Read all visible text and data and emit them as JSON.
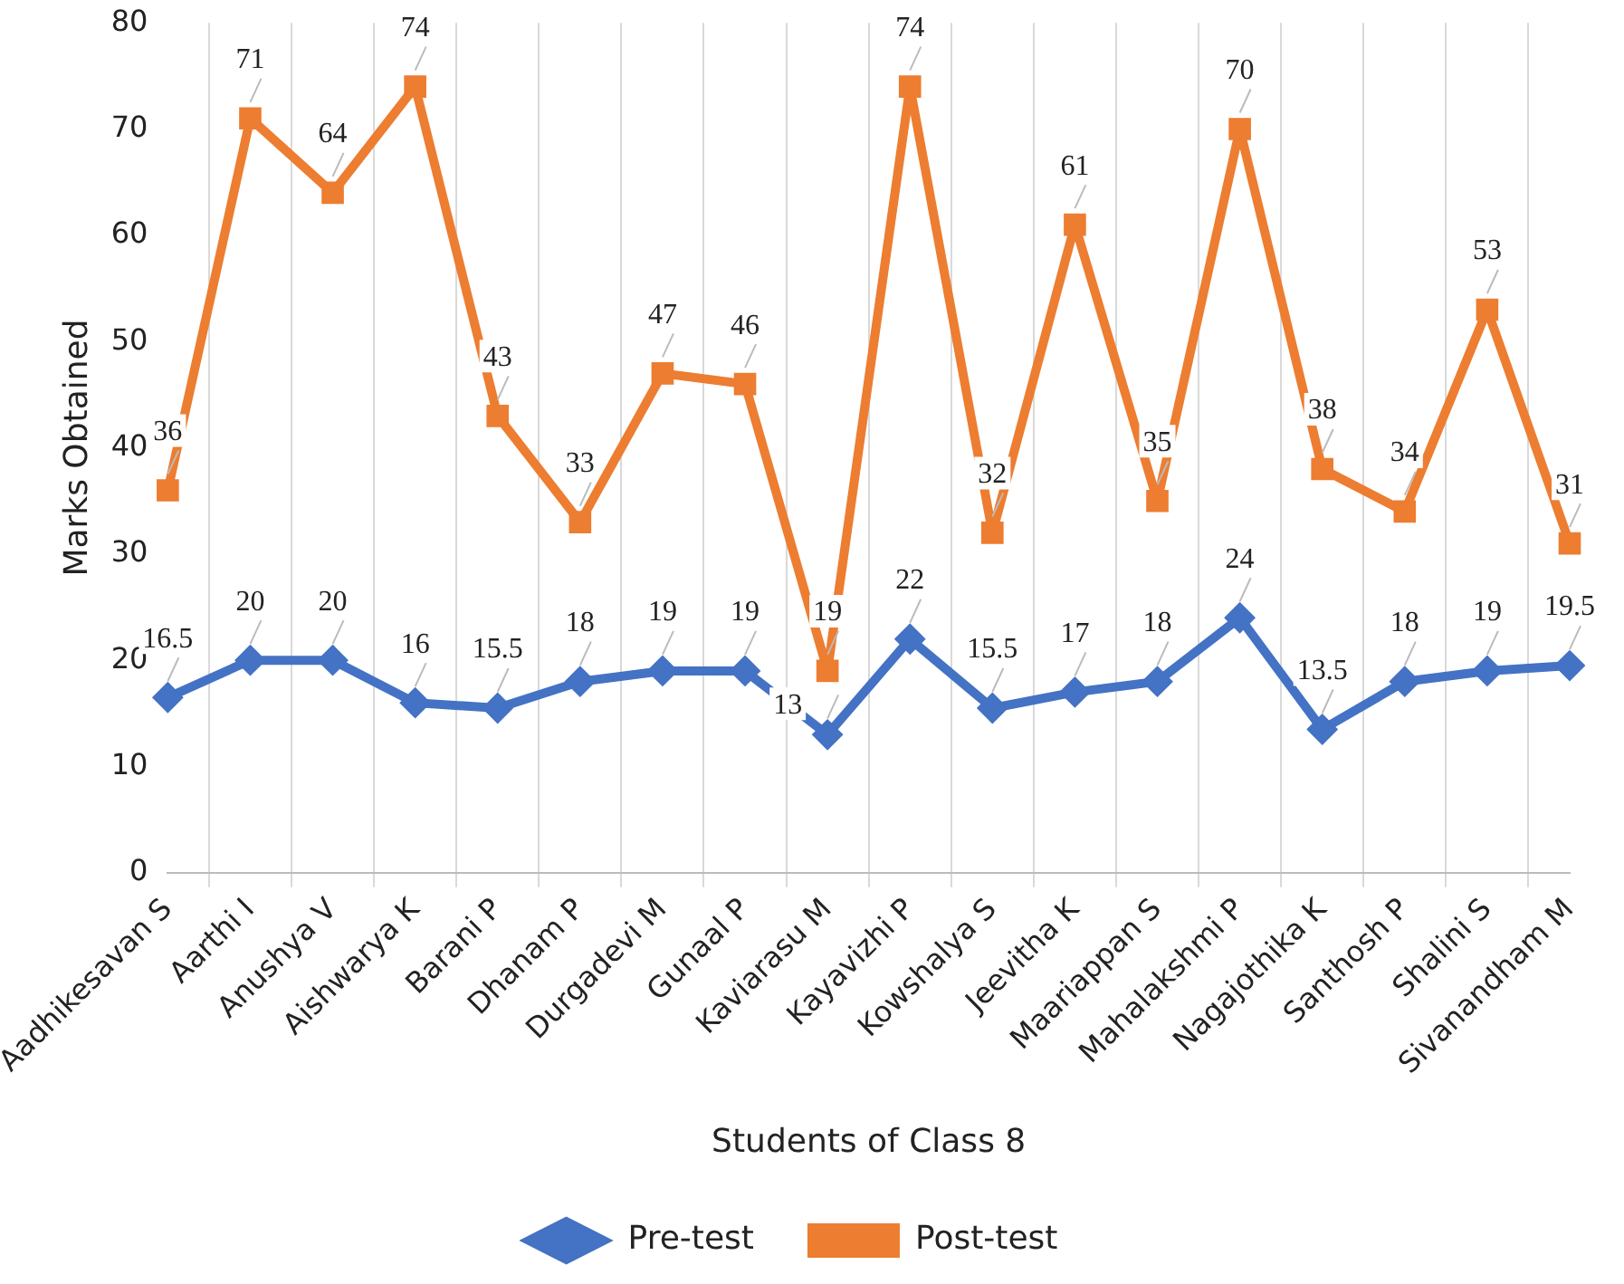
{
  "chart_data": {
    "type": "line",
    "xlabel": "Students of Class 8",
    "ylabel": "Marks Obtained",
    "categories": [
      "Aadhikesavan S",
      "Aarthi I",
      "Anushya V",
      "Aishwarya K",
      "Barani P",
      "Dhanam P",
      "Durgadevi M",
      "Gunaal P",
      "Kaviarasu M",
      "Kayavizhi P",
      "Kowshalya S",
      "Jeevitha K",
      "Maariappan S",
      "Mahalakshmi P",
      "Nagajothika K",
      "Santhosh P",
      "Shalini S",
      "Sivanandham M"
    ],
    "series": [
      {
        "name": "Pre-test",
        "color": "#4472c4",
        "marker": "diamond",
        "values": [
          16.5,
          20,
          20,
          16,
          15.5,
          18,
          19,
          19,
          13,
          22,
          15.5,
          17,
          18,
          24,
          13.5,
          18,
          19,
          19.5
        ]
      },
      {
        "name": "Post-test",
        "color": "#ed7d31",
        "marker": "square",
        "values": [
          36,
          71,
          64,
          74,
          43,
          33,
          47,
          46,
          19,
          74,
          32,
          61,
          35,
          70,
          38,
          34,
          53,
          31
        ]
      }
    ],
    "ylim": [
      0,
      80
    ],
    "yticks": [
      0,
      10,
      20,
      30,
      40,
      50,
      60,
      70,
      80
    ],
    "grid": "x",
    "legend": "bottom",
    "data_labels": true
  }
}
